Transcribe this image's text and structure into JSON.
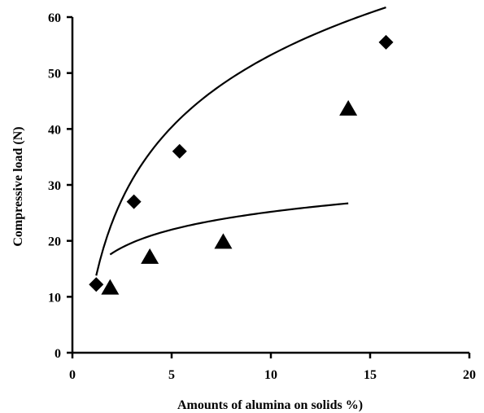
{
  "chart_data": {
    "type": "scatter",
    "title": "",
    "xlabel": "Amounts of alumina on solids %)",
    "ylabel": "Compressive load (N)",
    "xlim": [
      0,
      20
    ],
    "ylim": [
      0,
      60
    ],
    "xticks": [
      0,
      5,
      10,
      15,
      20
    ],
    "yticks": [
      0,
      10,
      20,
      30,
      40,
      50,
      60
    ],
    "grid": false,
    "legend": "none",
    "series": [
      {
        "marker": "diamond",
        "x": [
          1.2,
          3.1,
          5.4,
          15.8
        ],
        "y": [
          12.2,
          27.0,
          36.0,
          55.5
        ],
        "trendline": {
          "type": "logarithmic",
          "x_from": 1.2,
          "x_to": 15.8,
          "a": 18.6,
          "b": 10.4
        }
      },
      {
        "marker": "triangle",
        "x": [
          1.9,
          3.9,
          7.6,
          13.9
        ],
        "y": [
          11.5,
          17.0,
          19.7,
          43.5
        ],
        "trendline": {
          "type": "logarithmic",
          "x_from": 1.9,
          "x_to": 13.9,
          "a": 4.6,
          "b": 14.6
        }
      }
    ]
  }
}
